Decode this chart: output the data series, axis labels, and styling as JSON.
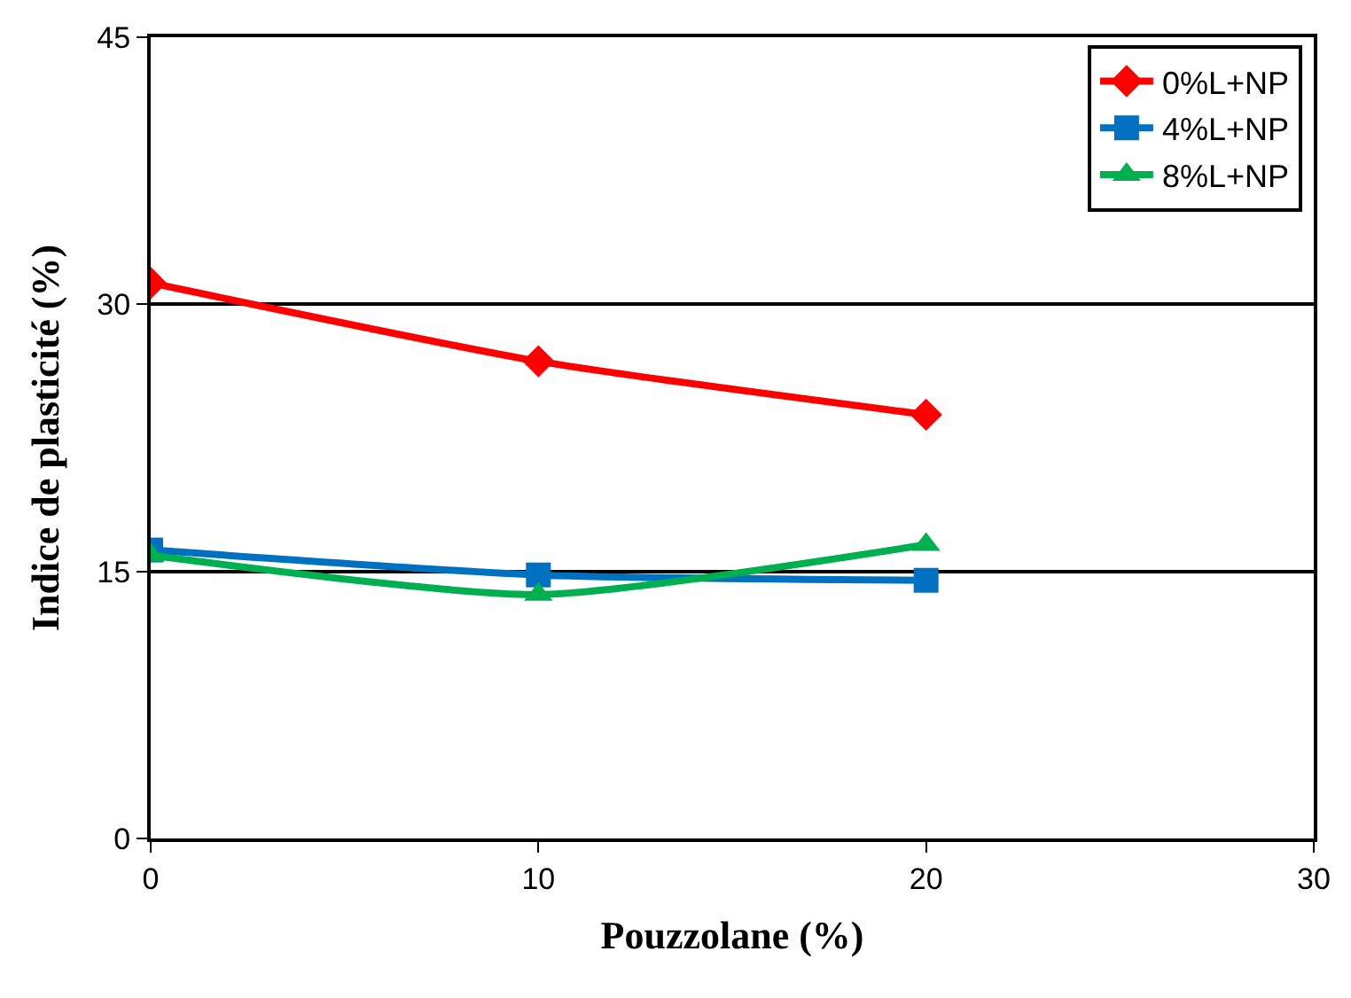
{
  "chart_data": {
    "type": "line",
    "xlabel": "Pouzzolane (%)",
    "ylabel": "Indice de plasticité (%)",
    "x": [
      0,
      10,
      20
    ],
    "xlim": [
      0,
      30
    ],
    "xticks": [
      0,
      10,
      20,
      30
    ],
    "ylim": [
      0,
      45
    ],
    "yticks": [
      0,
      15,
      30,
      45
    ],
    "grid": "y",
    "legend": "top right",
    "line_style": "solid",
    "series": [
      {
        "name": "0%L+NP",
        "color": "#ff0000",
        "marker": "diamond",
        "values": [
          31.2,
          26.8,
          23.8
        ]
      },
      {
        "name": "4%L+NP",
        "color": "#0070c0",
        "marker": "square",
        "values": [
          16.2,
          14.8,
          14.5
        ]
      },
      {
        "name": "8%L+NP",
        "color": "#00b050",
        "marker": "triangle",
        "values": [
          15.9,
          13.7,
          16.5
        ]
      }
    ]
  }
}
